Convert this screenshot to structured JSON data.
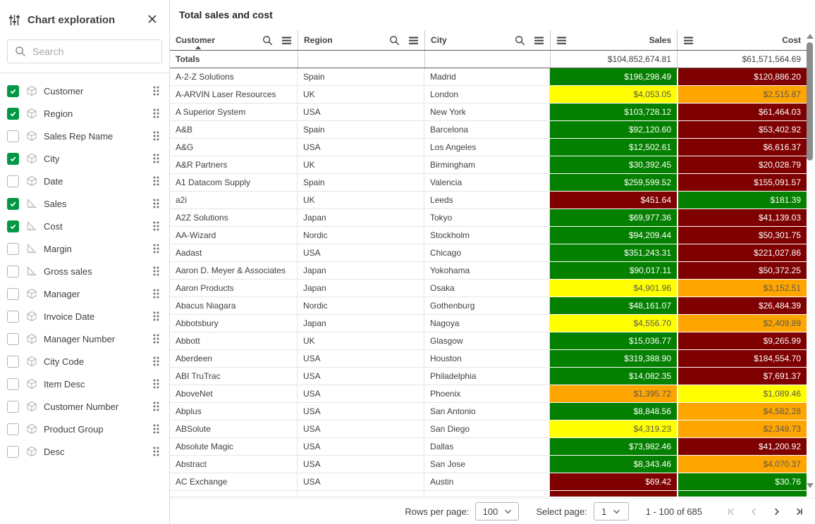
{
  "colors": {
    "green": "#048000",
    "red": "#7f0000",
    "yellow": "#ffff00",
    "orange": "#ffa500",
    "checkbox_green": "#009845"
  },
  "sidebar": {
    "title": "Chart exploration",
    "search_placeholder": "Search",
    "fields": [
      {
        "label": "Customer",
        "checked": true,
        "type": "dimension"
      },
      {
        "label": "Region",
        "checked": true,
        "type": "dimension"
      },
      {
        "label": "Sales Rep Name",
        "checked": false,
        "type": "dimension"
      },
      {
        "label": "City",
        "checked": true,
        "type": "dimension"
      },
      {
        "label": "Date",
        "checked": false,
        "type": "dimension"
      },
      {
        "label": "Sales",
        "checked": true,
        "type": "measure"
      },
      {
        "label": "Cost",
        "checked": true,
        "type": "measure"
      },
      {
        "label": "Margin",
        "checked": false,
        "type": "measure"
      },
      {
        "label": "Gross sales",
        "checked": false,
        "type": "measure"
      },
      {
        "label": "Manager",
        "checked": false,
        "type": "dimension"
      },
      {
        "label": "Invoice Date",
        "checked": false,
        "type": "dimension"
      },
      {
        "label": "Manager Number",
        "checked": false,
        "type": "dimension"
      },
      {
        "label": "City Code",
        "checked": false,
        "type": "dimension"
      },
      {
        "label": "Item Desc",
        "checked": false,
        "type": "dimension"
      },
      {
        "label": "Customer Number",
        "checked": false,
        "type": "dimension"
      },
      {
        "label": "Product Group",
        "checked": false,
        "type": "dimension"
      },
      {
        "label": "Desc",
        "checked": false,
        "type": "dimension"
      }
    ]
  },
  "main": {
    "title": "Total sales and cost",
    "table": {
      "columns": [
        {
          "label": "Customer",
          "type": "dimension",
          "sorted": true
        },
        {
          "label": "Region",
          "type": "dimension",
          "sorted": false
        },
        {
          "label": "City",
          "type": "dimension",
          "sorted": false
        },
        {
          "label": "Sales",
          "type": "measure",
          "sorted": false
        },
        {
          "label": "Cost",
          "type": "measure",
          "sorted": false
        }
      ],
      "totals": {
        "label": "Totals",
        "sales": "$104,852,674.81",
        "cost": "$61,571,564.69"
      },
      "rows": [
        {
          "customer": "A-2-Z Solutions",
          "region": "Spain",
          "city": "Madrid",
          "sales": "$196,298.49",
          "sales_color": "green",
          "cost": "$120,886.20",
          "cost_color": "red"
        },
        {
          "customer": "A-ARVIN Laser Resources",
          "region": "UK",
          "city": "London",
          "sales": "$4,053.05",
          "sales_color": "yellow",
          "cost": "$2,515.87",
          "cost_color": "orange"
        },
        {
          "customer": "A Superior System",
          "region": "USA",
          "city": "New York",
          "sales": "$103,728.12",
          "sales_color": "green",
          "cost": "$61,464.03",
          "cost_color": "red"
        },
        {
          "customer": "A&B",
          "region": "Spain",
          "city": "Barcelona",
          "sales": "$92,120.60",
          "sales_color": "green",
          "cost": "$53,402.92",
          "cost_color": "red"
        },
        {
          "customer": "A&G",
          "region": "USA",
          "city": "Los Angeles",
          "sales": "$12,502.61",
          "sales_color": "green",
          "cost": "$6,616.37",
          "cost_color": "red"
        },
        {
          "customer": "A&R Partners",
          "region": "UK",
          "city": "Birmingham",
          "sales": "$30,392.45",
          "sales_color": "green",
          "cost": "$20,028.79",
          "cost_color": "red"
        },
        {
          "customer": "A1 Datacom Supply",
          "region": "Spain",
          "city": "Valencia",
          "sales": "$259,599.52",
          "sales_color": "green",
          "cost": "$155,091.57",
          "cost_color": "red"
        },
        {
          "customer": "a2i",
          "region": "UK",
          "city": "Leeds",
          "sales": "$451.64",
          "sales_color": "red",
          "cost": "$181.39",
          "cost_color": "green"
        },
        {
          "customer": "A2Z Solutions",
          "region": "Japan",
          "city": "Tokyo",
          "sales": "$69,977.36",
          "sales_color": "green",
          "cost": "$41,139.03",
          "cost_color": "red"
        },
        {
          "customer": "AA-Wizard",
          "region": "Nordic",
          "city": "Stockholm",
          "sales": "$94,209.44",
          "sales_color": "green",
          "cost": "$50,301.75",
          "cost_color": "red"
        },
        {
          "customer": "Aadast",
          "region": "USA",
          "city": "Chicago",
          "sales": "$351,243.31",
          "sales_color": "green",
          "cost": "$221,027.86",
          "cost_color": "red"
        },
        {
          "customer": "Aaron D. Meyer & Associates",
          "region": "Japan",
          "city": "Yokohama",
          "sales": "$90,017.11",
          "sales_color": "green",
          "cost": "$50,372.25",
          "cost_color": "red"
        },
        {
          "customer": "Aaron Products",
          "region": "Japan",
          "city": "Osaka",
          "sales": "$4,901.96",
          "sales_color": "yellow",
          "cost": "$3,152.51",
          "cost_color": "orange"
        },
        {
          "customer": "Abacus Niagara",
          "region": "Nordic",
          "city": "Gothenburg",
          "sales": "$48,161.07",
          "sales_color": "green",
          "cost": "$26,484.39",
          "cost_color": "red"
        },
        {
          "customer": "Abbotsbury",
          "region": "Japan",
          "city": "Nagoya",
          "sales": "$4,556.70",
          "sales_color": "yellow",
          "cost": "$2,409.89",
          "cost_color": "orange"
        },
        {
          "customer": "Abbott",
          "region": "UK",
          "city": "Glasgow",
          "sales": "$15,036.77",
          "sales_color": "green",
          "cost": "$9,265.99",
          "cost_color": "red"
        },
        {
          "customer": "Aberdeen",
          "region": "USA",
          "city": "Houston",
          "sales": "$319,388.90",
          "sales_color": "green",
          "cost": "$184,554.70",
          "cost_color": "red"
        },
        {
          "customer": "ABI TruTrac",
          "region": "USA",
          "city": "Philadelphia",
          "sales": "$14,082.35",
          "sales_color": "green",
          "cost": "$7,691.37",
          "cost_color": "red"
        },
        {
          "customer": "AboveNet",
          "region": "USA",
          "city": "Phoenix",
          "sales": "$1,395.72",
          "sales_color": "orange",
          "cost": "$1,089.46",
          "cost_color": "yellow"
        },
        {
          "customer": "Abplus",
          "region": "USA",
          "city": "San Antonio",
          "sales": "$8,848.56",
          "sales_color": "green",
          "cost": "$4,582.28",
          "cost_color": "orange"
        },
        {
          "customer": "ABSolute",
          "region": "USA",
          "city": "San Diego",
          "sales": "$4,319.23",
          "sales_color": "yellow",
          "cost": "$2,349.73",
          "cost_color": "orange"
        },
        {
          "customer": "Absolute Magic",
          "region": "USA",
          "city": "Dallas",
          "sales": "$73,982.46",
          "sales_color": "green",
          "cost": "$41,200.92",
          "cost_color": "red"
        },
        {
          "customer": "Abstract",
          "region": "USA",
          "city": "San Jose",
          "sales": "$8,343.46",
          "sales_color": "green",
          "cost": "$4,070.37",
          "cost_color": "orange"
        },
        {
          "customer": "AC Exchange",
          "region": "USA",
          "city": "Austin",
          "sales": "$69.42",
          "sales_color": "red",
          "cost": "$30.76",
          "cost_color": "green"
        },
        {
          "customer": "",
          "region": "",
          "city": "",
          "sales": "",
          "sales_color": "red",
          "cost": "",
          "cost_color": "green",
          "partial": true
        }
      ]
    },
    "pagination": {
      "rows_per_page_label": "Rows per page:",
      "rows_per_page_value": "100",
      "select_page_label": "Select page:",
      "select_page_value": "1",
      "range_text": "1 - 100 of 685"
    }
  }
}
